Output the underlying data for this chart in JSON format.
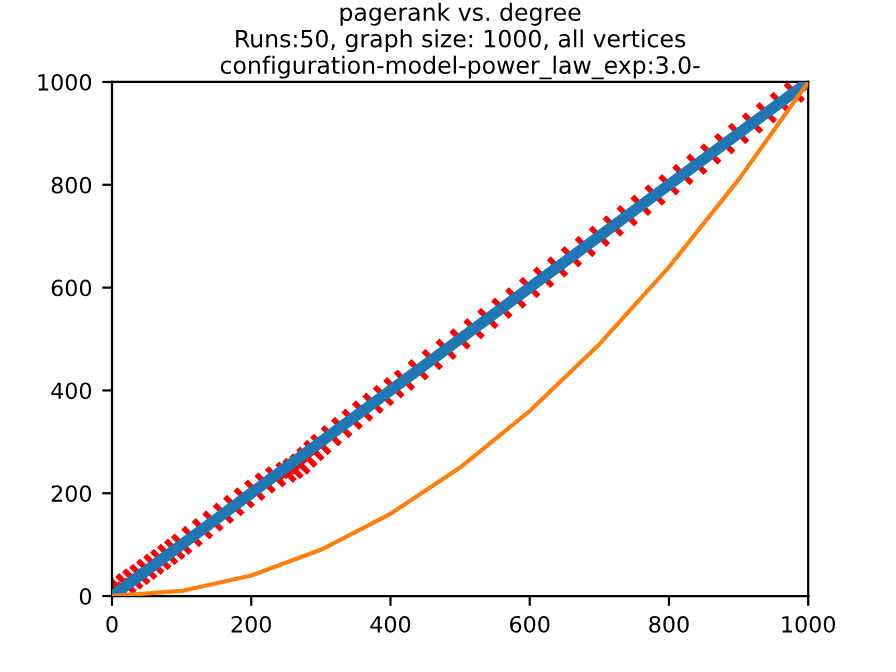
{
  "chart_data": {
    "type": "line",
    "title": "pagerank vs. degree\nRuns:50, graph size: 1000, all vertices\nconfiguration-model-power_law_exp:3.0-",
    "xlim": [
      0,
      1000
    ],
    "ylim": [
      0,
      1000
    ],
    "xticks": [
      0,
      200,
      400,
      600,
      800,
      1000
    ],
    "yticks": [
      0,
      200,
      400,
      600,
      800,
      1000
    ],
    "grid": false,
    "legend": false,
    "series": [
      {
        "type": "scatter",
        "marker": "cross",
        "color": "#ff0000",
        "x": [
          0,
          10,
          20,
          30,
          40,
          50,
          60,
          70,
          80,
          90,
          100,
          115,
          130,
          145,
          160,
          175,
          190,
          205,
          220,
          235,
          250,
          260,
          270,
          280,
          290,
          300,
          315,
          330,
          345,
          360,
          375,
          390,
          405,
          420,
          440,
          460,
          480,
          500,
          520,
          540,
          560,
          580,
          600,
          620,
          640,
          660,
          680,
          700,
          720,
          740,
          760,
          780,
          800,
          820,
          840,
          860,
          880,
          900,
          920,
          940,
          960,
          980
        ],
        "values": [
          8,
          15,
          24,
          33,
          42,
          52,
          62,
          71,
          81,
          91,
          101,
          116,
          131,
          146,
          161,
          176,
          191,
          206,
          220,
          232,
          241,
          248,
          257,
          270,
          283,
          295,
          312,
          328,
          344,
          360,
          375,
          390,
          405,
          420,
          440,
          460,
          480,
          500,
          520,
          540,
          560,
          580,
          600,
          620,
          640,
          660,
          680,
          700,
          720,
          740,
          760,
          780,
          800,
          820,
          840,
          860,
          880,
          900,
          920,
          940,
          960,
          980
        ]
      },
      {
        "color": "#1f77b4",
        "x": [
          0,
          1000
        ],
        "values": [
          0,
          1000
        ]
      },
      {
        "color": "#ff7f0e",
        "x": [
          0,
          100,
          200,
          300,
          400,
          500,
          600,
          700,
          800,
          900,
          1000
        ],
        "values": [
          0,
          10,
          40,
          90,
          160,
          250,
          360,
          490,
          640,
          810,
          1000
        ]
      }
    ]
  }
}
